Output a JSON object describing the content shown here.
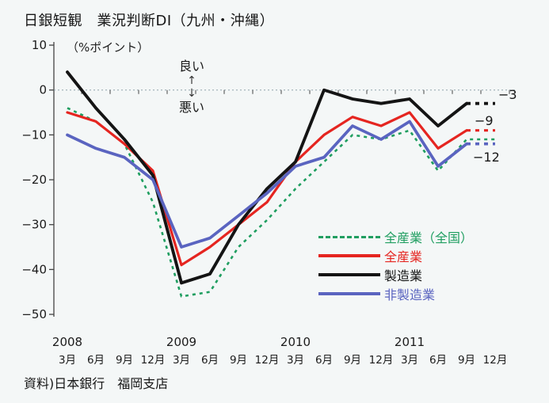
{
  "title": "日銀短観　業況判断DI（九州・沖縄）",
  "unit_label": "（%ポイント）",
  "annotation": {
    "good": "良い",
    "up_arrow": "↑",
    "down_arrow": "↓",
    "bad": "悪い"
  },
  "source": "資料)日本銀行　福岡支店",
  "colors": {
    "nationwide_green": "#1f9e60",
    "all_industry_red": "#e52520",
    "manufacturing_black": "#141414",
    "nonmanufacturing_blue": "#5a64c0",
    "axis": "#444444",
    "zero_line": "#90a4ab",
    "text": "#1c1c1c"
  },
  "chart_data": {
    "type": "line",
    "title": "日銀短観　業況判断DI（九州・沖縄）",
    "ylabel": "（%ポイント）",
    "ylim": [
      -50,
      10
    ],
    "grid": false,
    "legend_position": "lower-right-inside",
    "x_axis": {
      "years": [
        "2008",
        "2009",
        "2010",
        "2011"
      ],
      "year_positions": [
        0,
        4,
        8,
        12
      ],
      "months": [
        "3月",
        "6月",
        "9月",
        "12月",
        "3月",
        "6月",
        "9月",
        "12月",
        "3月",
        "6月",
        "9月",
        "12月",
        "3月",
        "6月",
        "9月",
        "12月"
      ]
    },
    "y_axis": {
      "tick_values": [
        10,
        0,
        -10,
        -20,
        -30,
        -40,
        -50
      ],
      "tick_labels": [
        "10",
        "0",
        "−10",
        "−20",
        "−30",
        "−40",
        "−50"
      ]
    },
    "series": [
      {
        "name": "全産業（全国）",
        "color": "#1f9e60",
        "line_style": "dashed",
        "values": [
          -4,
          -7,
          -12,
          -25,
          -46,
          -45,
          -35,
          -29,
          -22,
          -16,
          -10,
          -11,
          -9,
          -18,
          -11,
          -11
        ]
      },
      {
        "name": "全産業",
        "color": "#e52520",
        "line_style": "solid",
        "last_segment_forecast_dashed": true,
        "values": [
          -5,
          -7,
          -12,
          -18,
          -39,
          -35,
          -30,
          -25,
          -16,
          -10,
          -6,
          -8,
          -5,
          -13,
          -9,
          -9
        ]
      },
      {
        "name": "製造業",
        "color": "#141414",
        "line_style": "solid",
        "last_segment_forecast_dashed": true,
        "values": [
          4,
          -4,
          -11,
          -19,
          -43,
          -41,
          -30,
          -22,
          -16,
          0,
          -2,
          -3,
          -2,
          -8,
          -3,
          -3
        ]
      },
      {
        "name": "非製造業",
        "color": "#5a64c0",
        "line_style": "solid",
        "last_segment_forecast_dashed": true,
        "values": [
          -10,
          -13,
          -15,
          -20,
          -35,
          -33,
          -28,
          -23,
          -17,
          -15,
          -8,
          -11,
          -7,
          -17,
          -12,
          -12
        ]
      }
    ],
    "end_labels": [
      "−3",
      "−9",
      "−12"
    ],
    "end_label_series": [
      "製造業",
      "全産業",
      "非製造業"
    ]
  },
  "legend": {
    "items": [
      {
        "label": "全産業（全国）",
        "color": "#1f9e60",
        "style": "dashed"
      },
      {
        "label": "全産業",
        "color": "#e52520",
        "style": "solid"
      },
      {
        "label": "製造業",
        "color": "#141414",
        "style": "solid"
      },
      {
        "label": "非製造業",
        "color": "#5a64c0",
        "style": "solid"
      }
    ]
  }
}
